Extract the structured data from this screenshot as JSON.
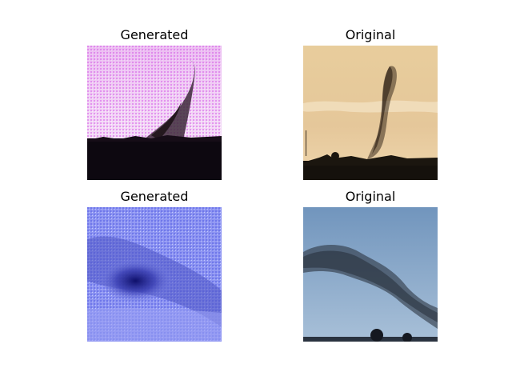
{
  "figure": {
    "panels": [
      {
        "title": "Generated",
        "kind": "generated"
      },
      {
        "title": "Original",
        "kind": "original"
      },
      {
        "title": "Generated",
        "kind": "generated"
      },
      {
        "title": "Original",
        "kind": "original"
      }
    ]
  },
  "colors": {
    "generated_top_sky": "#e7c6f2",
    "generated_top_ground": "#0d0810",
    "original_top_sky": "#e6c89c",
    "original_top_ground": "#14110c",
    "generated_bottom_sky": "#8a8ff0",
    "original_bottom_sky": "#7fa3c8"
  }
}
